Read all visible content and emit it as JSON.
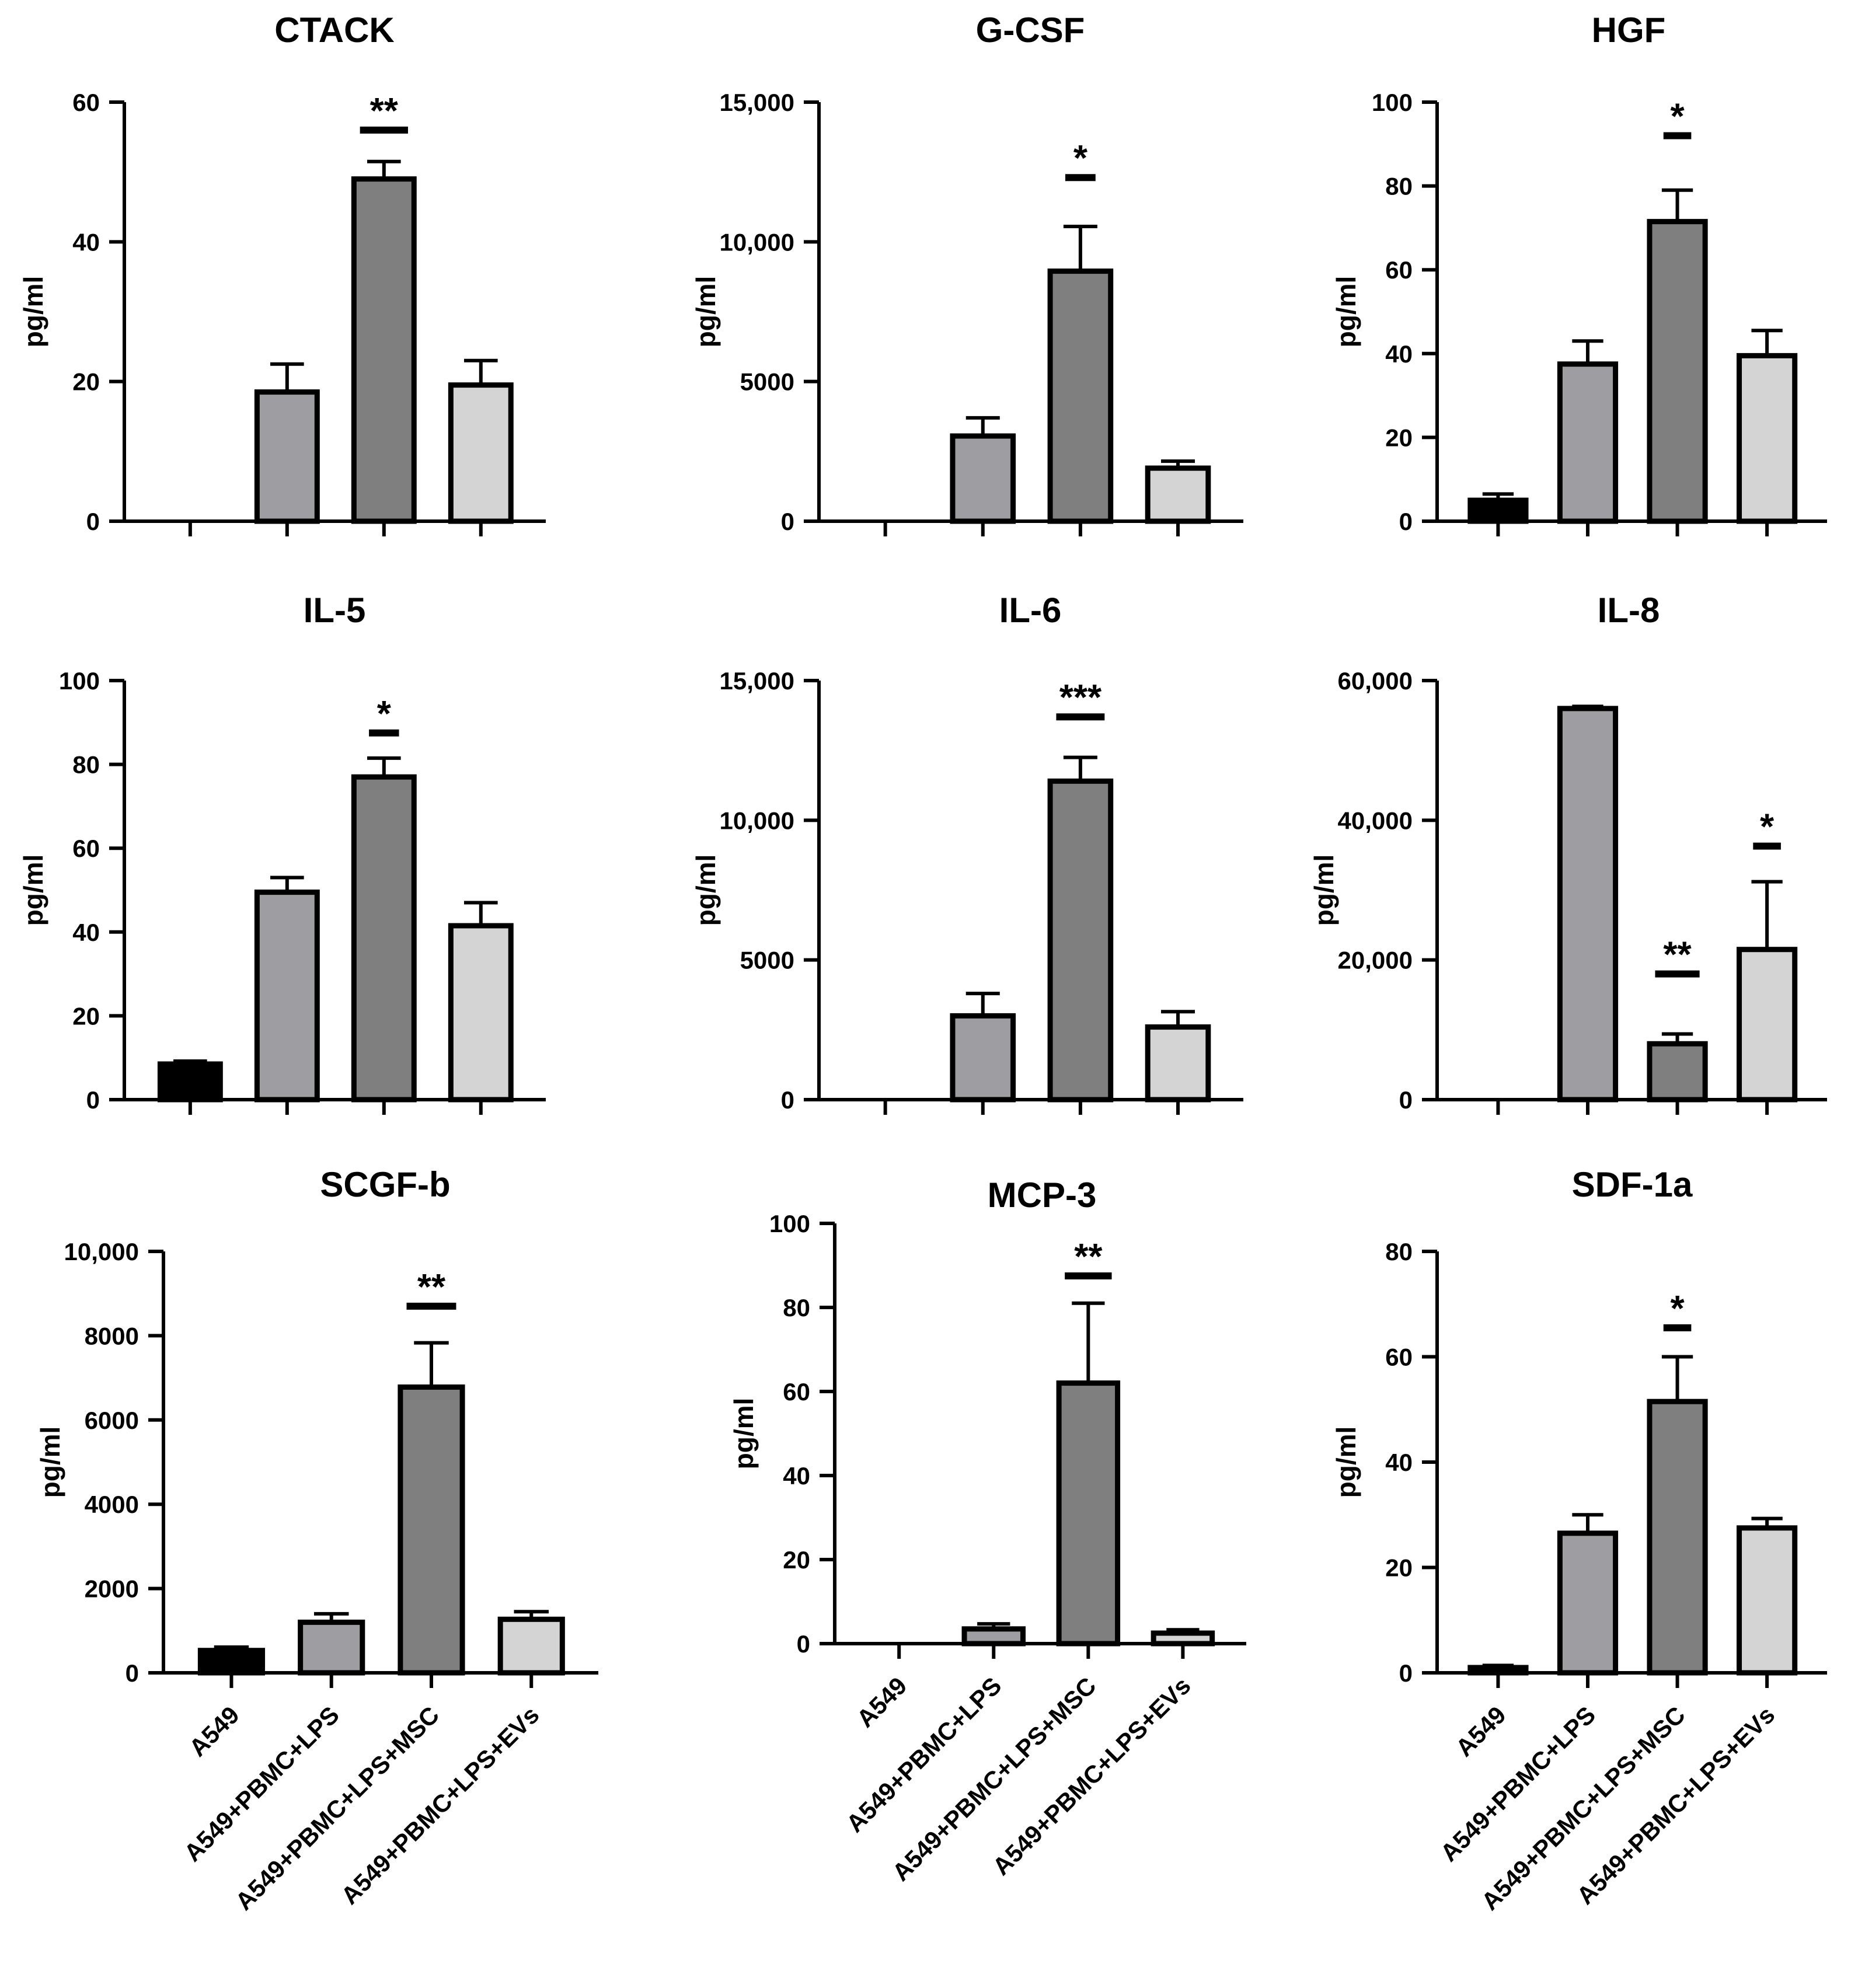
{
  "figure": {
    "categories": [
      "A549",
      "A549+PBMC+LPS",
      "A549+PBMC+LPS+MSC",
      "A549+PBMC+LPS+EVs"
    ],
    "bar_colors": [
      "#000000",
      "#9d9da2",
      "#7f7f7f",
      "#d4d4d4"
    ]
  },
  "chart_data": [
    {
      "type": "bar",
      "title": "CTACK",
      "ylabel": "pg/ml",
      "xlabel": "",
      "categories": [
        "A549",
        "A549+PBMC+LPS",
        "A549+PBMC+LPS+MSC",
        "A549+PBMC+LPS+EVs"
      ],
      "values": [
        0,
        18.5,
        49,
        19.5
      ],
      "errors": [
        0,
        4,
        2.5,
        3.5
      ],
      "ylim": [
        0,
        60
      ],
      "yticks": [
        0,
        20,
        40,
        60
      ],
      "ytick_labels": [
        "0",
        "20",
        "40",
        "60"
      ],
      "show_xlabels": false,
      "significance": [
        {
          "category": "A549+PBMC+LPS+MSC",
          "label": "**",
          "y": 56
        }
      ]
    },
    {
      "type": "bar",
      "title": "G-CSF",
      "ylabel": "pg/ml",
      "xlabel": "",
      "categories": [
        "A549",
        "A549+PBMC+LPS",
        "A549+PBMC+LPS+MSC",
        "A549+PBMC+LPS+EVs"
      ],
      "values": [
        0,
        3050,
        8950,
        1900
      ],
      "errors": [
        0,
        650,
        1600,
        250
      ],
      "ylim": [
        0,
        15000
      ],
      "yticks": [
        0,
        5000,
        10000,
        15000
      ],
      "ytick_labels": [
        "0",
        "5000",
        "10,000",
        "15,000"
      ],
      "show_xlabels": false,
      "significance": [
        {
          "category": "A549+PBMC+LPS+MSC",
          "label": "*",
          "y": 12300
        }
      ]
    },
    {
      "type": "bar",
      "title": "HGF",
      "ylabel": "pg/ml",
      "xlabel": "",
      "categories": [
        "A549",
        "A549+PBMC+LPS",
        "A549+PBMC+LPS+MSC",
        "A549+PBMC+LPS+EVs"
      ],
      "values": [
        5,
        37.5,
        71.5,
        39.5
      ],
      "errors": [
        1.5,
        5.5,
        7.5,
        6
      ],
      "ylim": [
        0,
        100
      ],
      "yticks": [
        0,
        20,
        40,
        60,
        80,
        100
      ],
      "ytick_labels": [
        "0",
        "20",
        "40",
        "60",
        "80",
        "100"
      ],
      "show_xlabels": false,
      "significance": [
        {
          "category": "A549+PBMC+LPS+MSC",
          "label": "*",
          "y": 92
        }
      ]
    },
    {
      "type": "bar",
      "title": "IL-5",
      "ylabel": "pg/ml",
      "xlabel": "",
      "categories": [
        "A549",
        "A549+PBMC+LPS",
        "A549+PBMC+LPS+MSC",
        "A549+PBMC+LPS+EVs"
      ],
      "values": [
        8.5,
        49.5,
        77,
        41.5
      ],
      "errors": [
        0.7,
        3.5,
        4.5,
        5.5
      ],
      "ylim": [
        0,
        100
      ],
      "yticks": [
        0,
        20,
        40,
        60,
        80,
        100
      ],
      "ytick_labels": [
        "0",
        "20",
        "40",
        "60",
        "80",
        "100"
      ],
      "show_xlabels": false,
      "significance": [
        {
          "category": "A549+PBMC+LPS+MSC",
          "label": "*",
          "y": 87.5
        }
      ]
    },
    {
      "type": "bar",
      "title": "IL-6",
      "ylabel": "pg/ml",
      "xlabel": "",
      "categories": [
        "A549",
        "A549+PBMC+LPS",
        "A549+PBMC+LPS+MSC",
        "A549+PBMC+LPS+EVs"
      ],
      "values": [
        0,
        3000,
        11400,
        2600
      ],
      "errors": [
        0,
        800,
        850,
        550
      ],
      "ylim": [
        0,
        15000
      ],
      "yticks": [
        0,
        5000,
        10000,
        15000
      ],
      "ytick_labels": [
        "0",
        "5000",
        "10,000",
        "15,000"
      ],
      "show_xlabels": false,
      "significance": [
        {
          "category": "A549+PBMC+LPS+MSC",
          "label": "***",
          "y": 13700
        }
      ]
    },
    {
      "type": "bar",
      "title": "IL-8",
      "ylabel": "pg/ml",
      "xlabel": "",
      "categories": [
        "A549",
        "A549+PBMC+LPS",
        "A549+PBMC+LPS+MSC",
        "A549+PBMC+LPS+EVs"
      ],
      "values": [
        0,
        56000,
        8000,
        21500
      ],
      "errors": [
        0,
        300,
        1400,
        9700
      ],
      "ylim": [
        0,
        60000
      ],
      "yticks": [
        0,
        20000,
        40000,
        60000
      ],
      "ytick_labels": [
        "0",
        "20,000",
        "40,000",
        "60,000"
      ],
      "show_xlabels": false,
      "significance": [
        {
          "category": "A549+PBMC+LPS+MSC",
          "label": "**",
          "y": 18000
        },
        {
          "category": "A549+PBMC+LPS+EVs",
          "label": "*",
          "y": 36300
        }
      ]
    },
    {
      "type": "bar",
      "title": "SCGF-b",
      "ylabel": "pg/ml",
      "xlabel": "",
      "categories": [
        "A549",
        "A549+PBMC+LPS",
        "A549+PBMC+LPS+MSC",
        "A549+PBMC+LPS+EVs"
      ],
      "values": [
        530,
        1200,
        6780,
        1270
      ],
      "errors": [
        80,
        200,
        1050,
        180
      ],
      "ylim": [
        0,
        10000
      ],
      "yticks": [
        0,
        2000,
        4000,
        6000,
        8000,
        10000
      ],
      "ytick_labels": [
        "0",
        "2000",
        "4000",
        "6000",
        "8000",
        "10,000"
      ],
      "show_xlabels": true,
      "significance": [
        {
          "category": "A549+PBMC+LPS+MSC",
          "label": "**",
          "y": 8700
        }
      ]
    },
    {
      "type": "bar",
      "title": "MCP-3",
      "ylabel": "pg/ml",
      "xlabel": "",
      "categories": [
        "A549",
        "A549+PBMC+LPS",
        "A549+PBMC+LPS+MSC",
        "A549+PBMC+LPS+EVs"
      ],
      "values": [
        0,
        3.5,
        62,
        2.5
      ],
      "errors": [
        0,
        1.2,
        19,
        0.8
      ],
      "ylim": [
        0,
        100
      ],
      "yticks": [
        0,
        20,
        40,
        60,
        80,
        100
      ],
      "ytick_labels": [
        "0",
        "20",
        "40",
        "60",
        "80",
        "100"
      ],
      "show_xlabels": true,
      "significance": [
        {
          "category": "A549+PBMC+LPS+MSC",
          "label": "**",
          "y": 87.5
        }
      ]
    },
    {
      "type": "bar",
      "title": "SDF-1a",
      "ylabel": "pg/ml",
      "xlabel": "",
      "categories": [
        "A549",
        "A549+PBMC+LPS",
        "A549+PBMC+LPS+MSC",
        "A549+PBMC+LPS+EVs"
      ],
      "values": [
        1,
        26.5,
        51.5,
        27.5
      ],
      "errors": [
        0.4,
        3.5,
        8.5,
        1.8
      ],
      "ylim": [
        0,
        80
      ],
      "yticks": [
        0,
        20,
        40,
        60,
        80
      ],
      "ytick_labels": [
        "0",
        "20",
        "40",
        "60",
        "80"
      ],
      "show_xlabels": true,
      "significance": [
        {
          "category": "A549+PBMC+LPS+MSC",
          "label": "*",
          "y": 65.5
        }
      ]
    }
  ]
}
